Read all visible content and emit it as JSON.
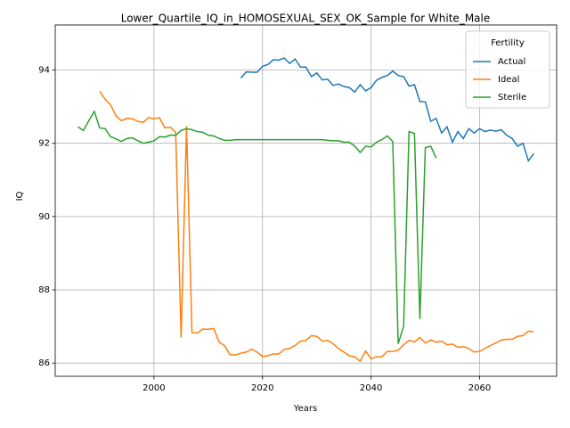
{
  "chart_data": {
    "type": "line",
    "title": "Lower_Quartile_IQ_in_HOMOSEXUAL_SEX_OK_Sample for White_Male",
    "xlabel": "Years",
    "ylabel": "IQ",
    "x": [
      1986,
      1987,
      1988,
      1989,
      1990,
      1991,
      1992,
      1993,
      1994,
      1995,
      1996,
      1997,
      1998,
      1999,
      2000,
      2001,
      2002,
      2003,
      2004,
      2005,
      2006,
      2007,
      2008,
      2009,
      2010,
      2011,
      2012,
      2013,
      2014,
      2015,
      2016,
      2017,
      2018,
      2019,
      2020,
      2021,
      2022,
      2023,
      2024,
      2025,
      2026,
      2027,
      2028,
      2029,
      2030,
      2031,
      2032,
      2033,
      2034,
      2035,
      2036,
      2037,
      2038,
      2039,
      2040,
      2041,
      2042,
      2043,
      2044,
      2045,
      2046,
      2047,
      2048,
      2049,
      2050,
      2051,
      2052,
      2053,
      2054,
      2055,
      2056,
      2057,
      2058,
      2059,
      2060,
      2061,
      2062,
      2063,
      2064,
      2065,
      2066,
      2067,
      2068,
      2069,
      2070
    ],
    "series": [
      {
        "name": "Actual",
        "color": "#1f77b4",
        "values": [
          null,
          null,
          null,
          null,
          null,
          null,
          null,
          null,
          null,
          null,
          null,
          null,
          null,
          null,
          null,
          null,
          null,
          null,
          null,
          null,
          null,
          null,
          null,
          null,
          null,
          null,
          null,
          null,
          null,
          null,
          93.78,
          93.95,
          93.94,
          93.94,
          94.1,
          94.15,
          94.28,
          94.27,
          94.33,
          94.18,
          94.3,
          94.08,
          94.08,
          93.82,
          93.92,
          93.73,
          93.75,
          93.58,
          93.62,
          93.55,
          93.52,
          93.4,
          93.6,
          93.43,
          93.52,
          93.72,
          93.8,
          93.85,
          93.97,
          93.85,
          93.82,
          93.56,
          93.6,
          93.14,
          93.13,
          92.6,
          92.68,
          92.28,
          92.45,
          92.03,
          92.32,
          92.13,
          92.4,
          92.28,
          92.4,
          92.32,
          92.36,
          92.33,
          92.37,
          92.22,
          92.13,
          91.92,
          92.0,
          91.52,
          91.72
        ]
      },
      {
        "name": "Ideal",
        "color": "#ff7f0e",
        "values": [
          null,
          null,
          null,
          null,
          93.42,
          93.2,
          93.05,
          92.75,
          92.62,
          92.68,
          92.67,
          92.6,
          92.57,
          92.7,
          92.67,
          92.7,
          92.42,
          92.44,
          92.3,
          86.7,
          92.47,
          86.83,
          86.82,
          86.93,
          86.92,
          86.95,
          86.57,
          86.48,
          86.23,
          86.22,
          86.27,
          86.3,
          86.38,
          86.3,
          86.18,
          86.2,
          86.25,
          86.25,
          86.37,
          86.4,
          86.48,
          86.6,
          86.62,
          86.75,
          86.73,
          86.6,
          86.62,
          86.53,
          86.4,
          86.3,
          86.2,
          86.17,
          86.05,
          86.33,
          86.12,
          86.17,
          86.17,
          86.32,
          86.32,
          86.35,
          86.5,
          86.62,
          86.58,
          86.7,
          86.55,
          86.63,
          86.57,
          86.6,
          86.5,
          86.52,
          86.43,
          86.45,
          86.4,
          86.3,
          86.32,
          86.4,
          86.48,
          86.55,
          86.63,
          86.65,
          86.65,
          86.73,
          86.75,
          86.87,
          86.85
        ]
      },
      {
        "name": "Sterile",
        "color": "#2ca02c",
        "values": [
          92.45,
          92.35,
          92.62,
          92.87,
          92.42,
          92.4,
          92.18,
          92.12,
          92.05,
          92.13,
          92.15,
          92.07,
          92.0,
          92.03,
          92.07,
          92.18,
          92.17,
          92.22,
          92.22,
          92.35,
          92.4,
          92.37,
          92.32,
          92.3,
          92.22,
          92.2,
          92.13,
          92.08,
          92.08,
          92.1,
          92.1,
          92.1,
          92.1,
          92.1,
          92.1,
          92.1,
          92.1,
          92.1,
          92.1,
          92.1,
          92.1,
          92.1,
          92.1,
          92.1,
          92.1,
          92.1,
          92.08,
          92.07,
          92.07,
          92.03,
          92.03,
          91.92,
          91.75,
          91.92,
          91.9,
          92.03,
          92.1,
          92.2,
          92.05,
          86.53,
          87.0,
          92.32,
          92.27,
          87.2,
          91.88,
          91.92,
          91.6,
          null,
          null,
          null,
          null,
          null,
          null,
          null,
          null,
          null,
          null,
          null,
          null,
          null,
          null,
          null,
          null,
          null,
          null
        ]
      }
    ],
    "xlim": [
      1981.8,
      2074.2
    ],
    "xticks": [
      2000,
      2020,
      2040,
      2060
    ],
    "ylim": [
      85.64,
      95.23
    ],
    "yticks": [
      86,
      88,
      90,
      92,
      94
    ],
    "grid": true,
    "legend_title": "Fertility",
    "legend_position": "upper right"
  }
}
